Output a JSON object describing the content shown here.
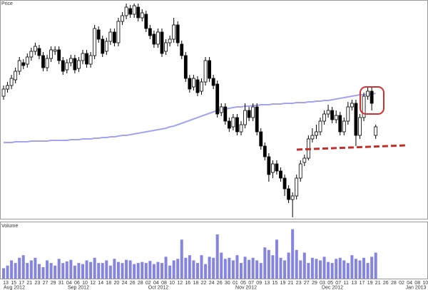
{
  "chart_data": [
    {
      "type": "candlestick",
      "label": "Price",
      "ylim": [
        0,
        300
      ],
      "up_color": "#ffffff",
      "down_color": "#000000",
      "open": [
        170,
        180,
        185,
        193,
        205,
        217,
        215,
        225,
        233,
        237,
        227,
        210,
        223,
        233,
        235,
        220,
        207,
        217,
        223,
        209,
        220,
        230,
        215,
        227,
        263,
        250,
        233,
        247,
        260,
        245,
        275,
        283,
        293,
        285,
        295,
        280,
        285,
        265,
        257,
        243,
        260,
        233,
        245,
        250,
        270,
        243,
        227,
        195,
        183,
        193,
        177,
        190,
        220,
        195,
        187,
        147,
        155,
        135,
        127,
        140,
        120,
        130,
        150,
        140,
        155,
        120,
        100,
        85,
        63,
        75,
        65,
        55,
        40,
        25,
        30,
        55,
        77,
        83,
        110,
        115,
        120,
        135,
        145,
        150,
        137,
        143,
        120,
        135,
        155,
        160,
        115,
        140,
        170,
        177,
        115
      ],
      "high": [
        185,
        190,
        200,
        210,
        225,
        222,
        230,
        238,
        245,
        242,
        232,
        228,
        240,
        240,
        240,
        225,
        222,
        228,
        228,
        225,
        235,
        235,
        232,
        270,
        268,
        255,
        252,
        265,
        265,
        280,
        288,
        300,
        298,
        300,
        300,
        292,
        290,
        270,
        262,
        265,
        265,
        250,
        255,
        280,
        275,
        248,
        232,
        200,
        200,
        198,
        195,
        225,
        225,
        200,
        192,
        160,
        160,
        140,
        145,
        145,
        135,
        160,
        155,
        160,
        160,
        125,
        105,
        90,
        80,
        80,
        70,
        60,
        45,
        35,
        60,
        80,
        88,
        115,
        125,
        130,
        140,
        150,
        158,
        155,
        150,
        148,
        140,
        162,
        165,
        165,
        145,
        175,
        182,
        182,
        130
      ],
      "low": [
        165,
        175,
        180,
        188,
        200,
        208,
        210,
        220,
        228,
        222,
        205,
        205,
        218,
        228,
        215,
        200,
        202,
        212,
        202,
        204,
        215,
        210,
        210,
        222,
        245,
        225,
        228,
        242,
        240,
        240,
        270,
        278,
        280,
        280,
        275,
        275,
        260,
        250,
        238,
        238,
        225,
        228,
        240,
        245,
        240,
        222,
        190,
        175,
        178,
        170,
        172,
        185,
        190,
        180,
        140,
        142,
        130,
        120,
        122,
        115,
        115,
        125,
        135,
        135,
        115,
        95,
        80,
        50,
        55,
        60,
        50,
        30,
        20,
        0,
        25,
        50,
        72,
        80,
        105,
        110,
        115,
        130,
        140,
        132,
        132,
        115,
        115,
        130,
        150,
        100,
        110,
        135,
        165,
        150,
        110
      ],
      "close": [
        180,
        185,
        195,
        205,
        220,
        213,
        225,
        233,
        240,
        227,
        210,
        223,
        235,
        235,
        220,
        205,
        217,
        223,
        207,
        220,
        230,
        215,
        227,
        265,
        250,
        230,
        247,
        260,
        245,
        275,
        283,
        295,
        285,
        297,
        280,
        287,
        265,
        255,
        243,
        260,
        230,
        245,
        250,
        270,
        245,
        227,
        195,
        180,
        195,
        175,
        190,
        220,
        195,
        185,
        145,
        155,
        135,
        125,
        140,
        120,
        130,
        150,
        140,
        155,
        120,
        100,
        85,
        60,
        75,
        65,
        55,
        40,
        25,
        30,
        55,
        75,
        83,
        110,
        115,
        120,
        135,
        145,
        150,
        137,
        143,
        120,
        135,
        155,
        160,
        115,
        140,
        170,
        177,
        160,
        127
      ],
      "ma": {
        "color": "#a3a3ee",
        "values": [
          105,
          105,
          105,
          106,
          106,
          106,
          106,
          107,
          107,
          107,
          107,
          107,
          108,
          108,
          108,
          108,
          108,
          109,
          109,
          109,
          110,
          110,
          110,
          111,
          111,
          112,
          112,
          113,
          113,
          114,
          115,
          115,
          116,
          117,
          118,
          119,
          120,
          121,
          122,
          123,
          124,
          125,
          127,
          128,
          130,
          132,
          134,
          136,
          138,
          140,
          142,
          144,
          146,
          148,
          150,
          151,
          152,
          153,
          154,
          155,
          155,
          156,
          156,
          157,
          157,
          158,
          158,
          158,
          159,
          159,
          159,
          160,
          160,
          160,
          161,
          161,
          161,
          162,
          162,
          163,
          163,
          164,
          164,
          165,
          166,
          167,
          168,
          169,
          170,
          171,
          172,
          172,
          173,
          173,
          174
        ]
      }
    },
    {
      "type": "bar",
      "label": "Volume",
      "color": "#8585e0",
      "ylim": [
        0,
        100
      ],
      "values": [
        20,
        25,
        35,
        30,
        40,
        45,
        30,
        35,
        40,
        28,
        22,
        35,
        30,
        25,
        38,
        30,
        33,
        36,
        25,
        30,
        28,
        35,
        32,
        40,
        30,
        30,
        35,
        25,
        38,
        32,
        30,
        36,
        35,
        28,
        30,
        32,
        30,
        34,
        28,
        32,
        30,
        42,
        25,
        35,
        38,
        75,
        40,
        45,
        35,
        30,
        45,
        28,
        42,
        40,
        85,
        50,
        38,
        40,
        35,
        45,
        30,
        42,
        36,
        40,
        35,
        30,
        60,
        55,
        45,
        75,
        40,
        35,
        50,
        95,
        55,
        35,
        50,
        30,
        40,
        38,
        35,
        42,
        32,
        30,
        38,
        40,
        35,
        30,
        45,
        38,
        35,
        40,
        30,
        42,
        50
      ],
      "x_tick_labels": [
        "13",
        "15",
        "17",
        "21",
        "23",
        "27",
        "29",
        "31",
        "04",
        "06",
        "10",
        "12",
        "14",
        "18",
        "20",
        "24",
        "26",
        "28",
        "02",
        "04",
        "08",
        "10",
        "12",
        "16",
        "18",
        "22",
        "24",
        "26",
        "30",
        "01",
        "05",
        "07",
        "09",
        "13",
        "15",
        "19",
        "21",
        "23",
        "27",
        "29",
        "03",
        "05",
        "07",
        "11",
        "13",
        "17",
        "19",
        "21",
        "26",
        "28",
        "02",
        "04",
        "08",
        "10"
      ],
      "month_labels": [
        "Aug 2012",
        "Sep 2012",
        "Oct 2012",
        "Nov 2012",
        "Dec 2012",
        "Jan 2013"
      ]
    }
  ]
}
